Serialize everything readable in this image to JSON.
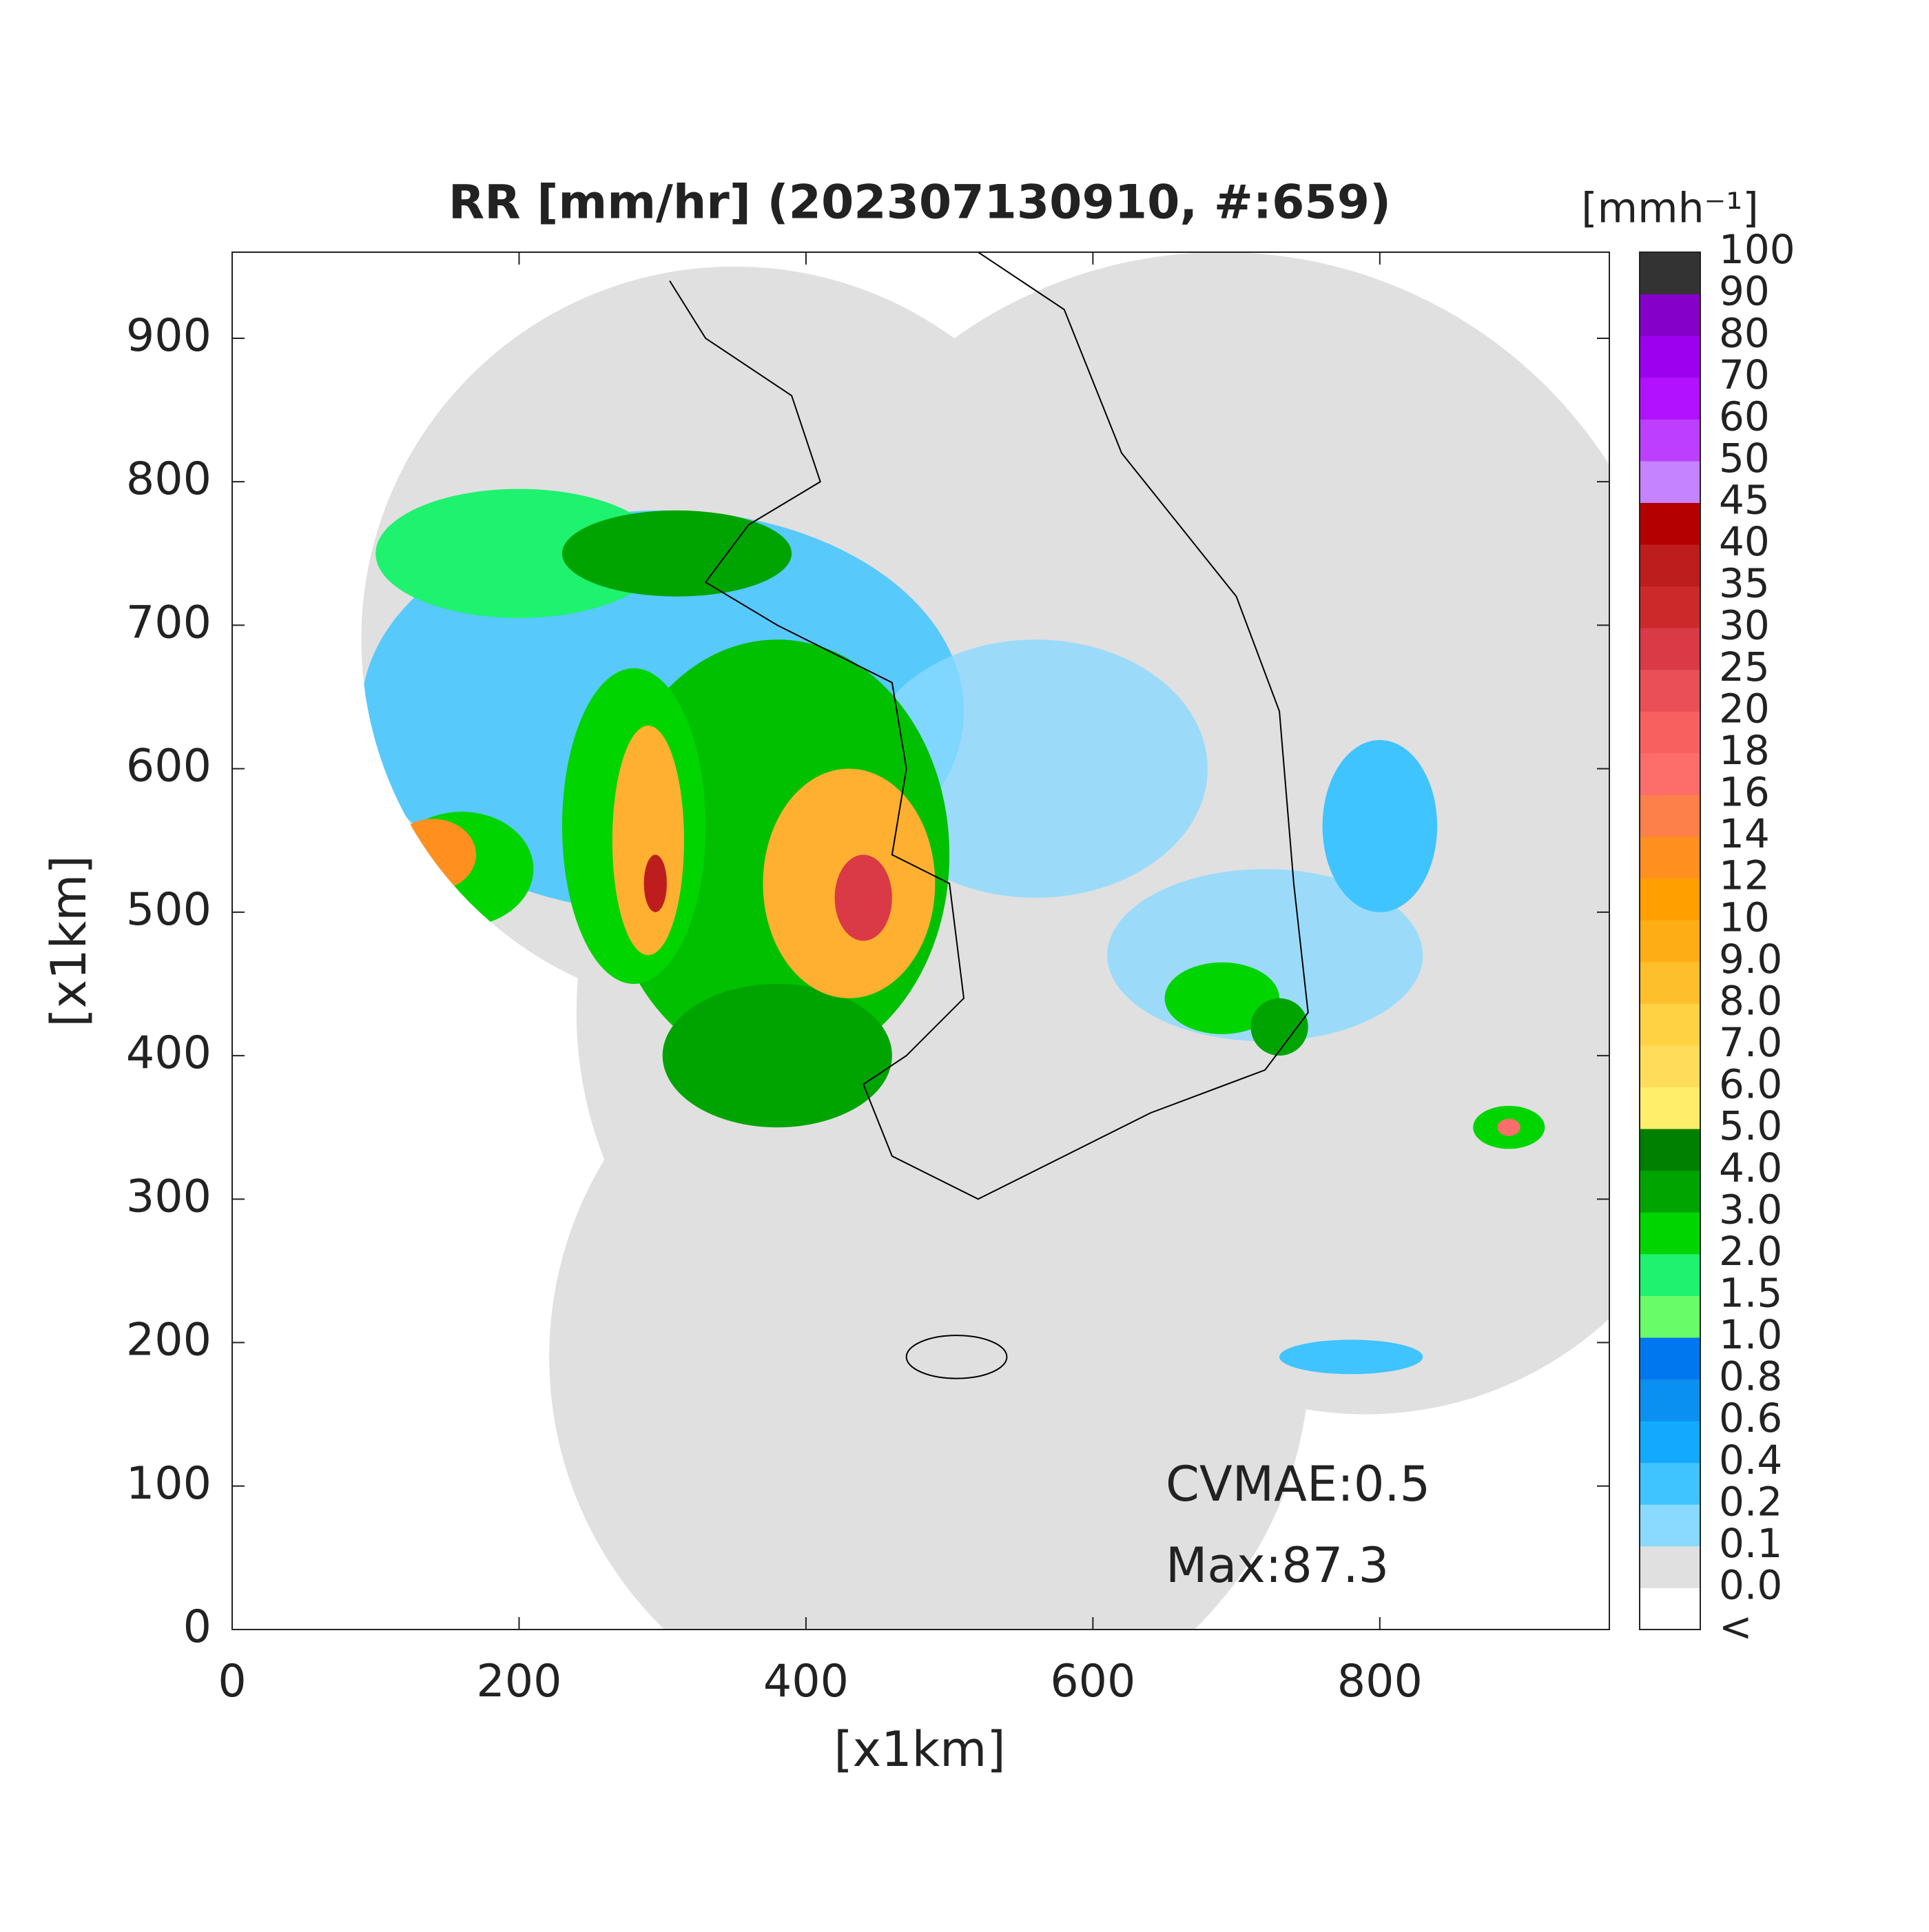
{
  "chart_data": {
    "type": "radar-map",
    "title": "RR [mm/hr] (202307130910, #:659)",
    "xlabel": "[x1km]",
    "ylabel": "[x1km]",
    "xlim": [
      0,
      960
    ],
    "ylim": [
      0,
      960
    ],
    "xticks": [
      0,
      200,
      400,
      600,
      800
    ],
    "yticks": [
      0,
      100,
      200,
      300,
      400,
      500,
      600,
      700,
      800,
      900
    ],
    "annotations": [
      "CVMAE:0.5",
      "Max:87.3"
    ],
    "colorbar": {
      "label": "[mmh⁻¹]",
      "levels": [
        "<",
        "0.0",
        "0.1",
        "0.2",
        "0.4",
        "0.6",
        "0.8",
        "1.0",
        "1.5",
        "2.0",
        "3.0",
        "4.0",
        "5.0",
        "6.0",
        "7.0",
        "8.0",
        "9.0",
        "10",
        "12",
        "14",
        "16",
        "18",
        "20",
        "25",
        "30",
        "35",
        "40",
        "45",
        "50",
        "60",
        "70",
        "80",
        "90",
        "100"
      ],
      "colors": [
        "#ffffff",
        "#e0e0e0",
        "#8ad9ff",
        "#40c4ff",
        "#12a9ff",
        "#0a90f0",
        "#0077ee",
        "#69fc69",
        "#1ef26f",
        "#00d500",
        "#00a400",
        "#008000",
        "#ffee6a",
        "#ffdc5a",
        "#fed243",
        "#fdbf2c",
        "#ffad14",
        "#ffa000",
        "#ff9020",
        "#fd7f4a",
        "#fd6d6a",
        "#f86060",
        "#ea4f58",
        "#d93a45",
        "#cc2a2a",
        "#be1d1d",
        "#b40000",
        "#c583ff",
        "#bd3eff",
        "#b111ff",
        "#9d00ee",
        "#8500c8",
        "#333333"
      ]
    }
  }
}
